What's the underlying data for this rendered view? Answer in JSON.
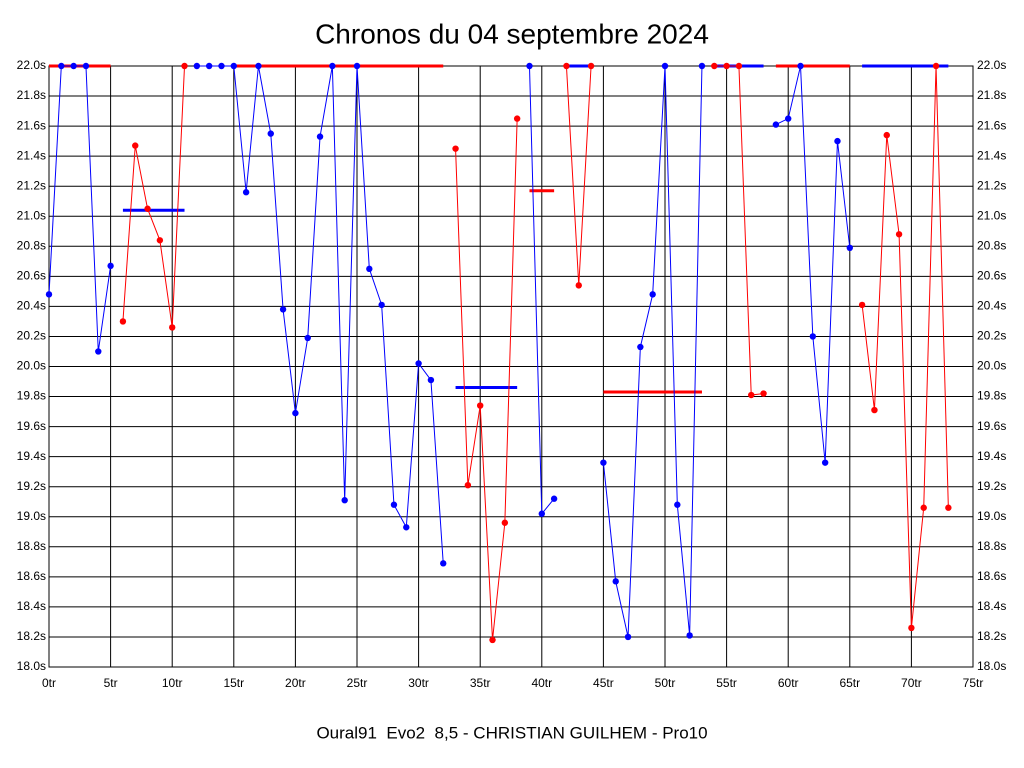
{
  "chart_data": {
    "type": "line",
    "title": "Chronos du 04 septembre 2024",
    "footer": "Oural91  Evo2  8,5 - CHRISTIAN GUILHEM - Pro10",
    "xlim": [
      0,
      75
    ],
    "xticks": [
      {
        "value": 0,
        "label": "0tr"
      },
      {
        "value": 5,
        "label": "5tr"
      },
      {
        "value": 10,
        "label": "10tr"
      },
      {
        "value": 15,
        "label": "15tr"
      },
      {
        "value": 20,
        "label": "20tr"
      },
      {
        "value": 25,
        "label": "25tr"
      },
      {
        "value": 30,
        "label": "30tr"
      },
      {
        "value": 35,
        "label": "35tr"
      },
      {
        "value": 40,
        "label": "40tr"
      },
      {
        "value": 45,
        "label": "45tr"
      },
      {
        "value": 50,
        "label": "50tr"
      },
      {
        "value": 55,
        "label": "55tr"
      },
      {
        "value": 60,
        "label": "60tr"
      },
      {
        "value": 65,
        "label": "65tr"
      },
      {
        "value": 70,
        "label": "70tr"
      },
      {
        "value": 75,
        "label": "75tr"
      }
    ],
    "ylim": [
      18.0,
      22.0
    ],
    "yticks": [
      {
        "value": 18.0,
        "label": "18.0s"
      },
      {
        "value": 18.2,
        "label": "18.2s"
      },
      {
        "value": 18.4,
        "label": "18.4s"
      },
      {
        "value": 18.6,
        "label": "18.6s"
      },
      {
        "value": 18.8,
        "label": "18.8s"
      },
      {
        "value": 19.0,
        "label": "19.0s"
      },
      {
        "value": 19.2,
        "label": "19.2s"
      },
      {
        "value": 19.4,
        "label": "19.4s"
      },
      {
        "value": 19.6,
        "label": "19.6s"
      },
      {
        "value": 19.8,
        "label": "19.8s"
      },
      {
        "value": 20.0,
        "label": "20.0s"
      },
      {
        "value": 20.2,
        "label": "20.2s"
      },
      {
        "value": 20.4,
        "label": "20.4s"
      },
      {
        "value": 20.6,
        "label": "20.6s"
      },
      {
        "value": 20.8,
        "label": "20.8s"
      },
      {
        "value": 21.0,
        "label": "21.0s"
      },
      {
        "value": 21.2,
        "label": "21.2s"
      },
      {
        "value": 21.4,
        "label": "21.4s"
      },
      {
        "value": 21.6,
        "label": "21.6s"
      },
      {
        "value": 21.8,
        "label": "21.8s"
      },
      {
        "value": 22.0,
        "label": "22.0s"
      }
    ],
    "grid": true,
    "series": [
      {
        "color": "#0000ff",
        "x": [
          0,
          1,
          2,
          3,
          4,
          5
        ],
        "values": [
          20.48,
          22.0,
          22.0,
          22.0,
          20.1,
          20.67
        ]
      },
      {
        "color": "#ff0000",
        "x": [
          6,
          7,
          8,
          9,
          10,
          11
        ],
        "values": [
          20.3,
          21.47,
          21.05,
          20.84,
          20.26,
          22.0
        ]
      },
      {
        "color": "#0000ff",
        "x": [
          12,
          13,
          14,
          15,
          16,
          17,
          18,
          19,
          20,
          21,
          22,
          23,
          24,
          25,
          26,
          27,
          28,
          29,
          30,
          31,
          32
        ],
        "values": [
          22.0,
          22.0,
          22.0,
          22.0,
          21.16,
          22.0,
          21.55,
          20.38,
          19.69,
          20.19,
          21.53,
          22.0,
          19.11,
          22.0,
          20.65,
          20.41,
          19.08,
          18.93,
          20.02,
          19.91,
          18.69
        ]
      },
      {
        "color": "#ff0000",
        "x": [
          33,
          34,
          35,
          36,
          37,
          38
        ],
        "values": [
          21.45,
          19.21,
          19.74,
          18.18,
          18.96,
          21.65
        ]
      },
      {
        "color": "#0000ff",
        "x": [
          39,
          40,
          41
        ],
        "values": [
          22.0,
          19.02,
          19.12
        ]
      },
      {
        "color": "#ff0000",
        "x": [
          42,
          43,
          44
        ],
        "values": [
          22.0,
          20.54,
          22.0
        ]
      },
      {
        "color": "#0000ff",
        "x": [
          45,
          46,
          47,
          48,
          49,
          50,
          51,
          52,
          53
        ],
        "values": [
          19.36,
          18.57,
          18.2,
          20.13,
          20.48,
          22.0,
          19.08,
          18.21,
          22.0
        ]
      },
      {
        "color": "#ff0000",
        "x": [
          54,
          55,
          56,
          57,
          58
        ],
        "values": [
          22.0,
          22.0,
          22.0,
          19.81,
          19.82
        ]
      },
      {
        "color": "#0000ff",
        "x": [
          59,
          60,
          61,
          62,
          63,
          64,
          65
        ],
        "values": [
          21.61,
          21.65,
          22.0,
          20.2,
          19.36,
          21.5,
          20.79
        ]
      },
      {
        "color": "#ff0000",
        "x": [
          66,
          67,
          68,
          69,
          70,
          71,
          72,
          73
        ],
        "values": [
          20.41,
          19.71,
          21.54,
          20.88,
          18.26,
          19.06,
          22.0,
          19.06
        ]
      }
    ],
    "reference_lines": [
      {
        "color": "#ff0000",
        "x": [
          0,
          5
        ],
        "value": 22.0
      },
      {
        "color": "#0000ff",
        "x": [
          6,
          11
        ],
        "value": 21.04
      },
      {
        "color": "#ff0000",
        "x": [
          15,
          32
        ],
        "value": 22.0
      },
      {
        "color": "#0000ff",
        "x": [
          33,
          38
        ],
        "value": 19.86
      },
      {
        "color": "#ff0000",
        "x": [
          39,
          41
        ],
        "value": 21.17
      },
      {
        "color": "#0000ff",
        "x": [
          42,
          44
        ],
        "value": 22.0
      },
      {
        "color": "#ff0000",
        "x": [
          45,
          53
        ],
        "value": 19.83
      },
      {
        "color": "#0000ff",
        "x": [
          54,
          58
        ],
        "value": 22.0
      },
      {
        "color": "#ff0000",
        "x": [
          59,
          65
        ],
        "value": 22.0
      },
      {
        "color": "#0000ff",
        "x": [
          66,
          73
        ],
        "value": 22.0
      }
    ]
  }
}
